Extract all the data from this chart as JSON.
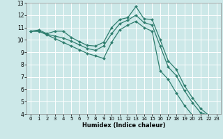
{
  "xlabel": "Humidex (Indice chaleur)",
  "bg_color": "#cce8e8",
  "grid_color": "#ffffff",
  "line_color": "#2e7d6e",
  "xlim": [
    -0.5,
    23.5
  ],
  "ylim": [
    4,
    13
  ],
  "xticks": [
    0,
    1,
    2,
    3,
    4,
    5,
    6,
    7,
    8,
    9,
    10,
    11,
    12,
    13,
    14,
    15,
    16,
    17,
    18,
    19,
    20,
    21,
    22,
    23
  ],
  "yticks": [
    4,
    5,
    6,
    7,
    8,
    9,
    10,
    11,
    12,
    13
  ],
  "lines": [
    [
      10.7,
      10.8,
      10.5,
      10.7,
      10.7,
      10.2,
      9.85,
      9.55,
      9.5,
      9.8,
      11.0,
      11.65,
      11.8,
      12.7,
      11.7,
      11.65,
      10.0,
      8.3,
      7.6,
      6.3,
      5.3,
      4.45,
      3.9
    ],
    [
      10.7,
      10.7,
      10.45,
      10.3,
      10.15,
      9.9,
      9.6,
      9.3,
      9.15,
      9.5,
      10.5,
      11.3,
      11.6,
      12.0,
      11.4,
      11.2,
      9.5,
      7.8,
      7.1,
      5.9,
      4.9,
      4.1,
      3.9
    ],
    [
      10.7,
      10.7,
      10.4,
      10.1,
      9.8,
      9.5,
      9.2,
      8.9,
      8.7,
      8.5,
      9.8,
      10.8,
      11.2,
      11.5,
      11.0,
      10.7,
      7.5,
      6.8,
      5.7,
      4.7,
      3.9,
      null,
      null
    ]
  ]
}
